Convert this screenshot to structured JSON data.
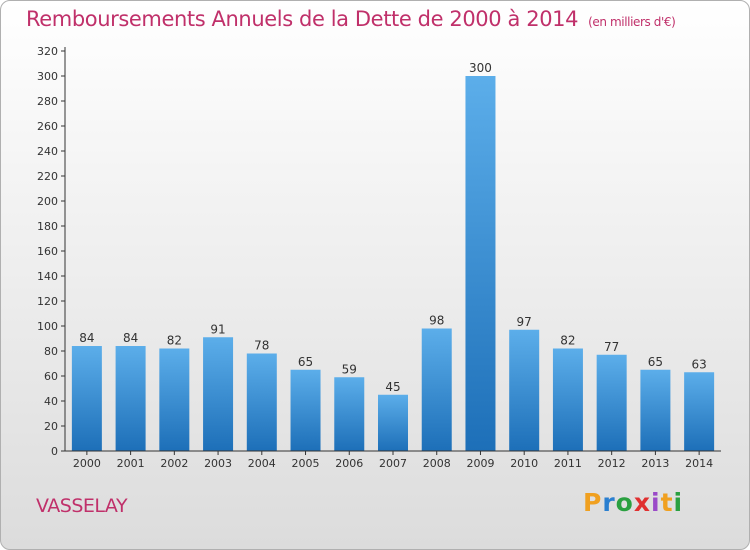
{
  "header": {
    "title": "Remboursements Annuels de la Dette de 2000 à 2014",
    "unit": "(en milliers d'€)"
  },
  "footer": {
    "city": "VASSELAY",
    "logo_letters": [
      "P",
      "r",
      "o",
      "x",
      "i",
      "t",
      "i"
    ],
    "logo_colors": [
      "#f0a020",
      "#2a7fd0",
      "#2aa040",
      "#e03030",
      "#9a4ac8",
      "#f0a020",
      "#2aa040"
    ]
  },
  "colors": {
    "bar_top": "#5caeea",
    "bar_bottom": "#1d6fb8",
    "title": "#c0306a",
    "axis": "#333333"
  },
  "chart_data": {
    "type": "bar",
    "title": "Remboursements Annuels de la Dette de 2000 à 2014",
    "subtitle": "(en milliers d'€)",
    "xlabel": "",
    "ylabel": "",
    "categories": [
      "2000",
      "2001",
      "2002",
      "2003",
      "2004",
      "2005",
      "2006",
      "2007",
      "2008",
      "2009",
      "2010",
      "2011",
      "2012",
      "2013",
      "2014"
    ],
    "values": [
      84,
      84,
      82,
      91,
      78,
      65,
      59,
      45,
      98,
      300,
      97,
      82,
      77,
      65,
      63
    ],
    "ylim": [
      0,
      320
    ],
    "yticks": [
      0,
      20,
      40,
      60,
      80,
      100,
      120,
      140,
      160,
      180,
      200,
      220,
      240,
      260,
      280,
      300,
      320
    ],
    "grid": false,
    "legend": "none",
    "data_labels": true
  }
}
